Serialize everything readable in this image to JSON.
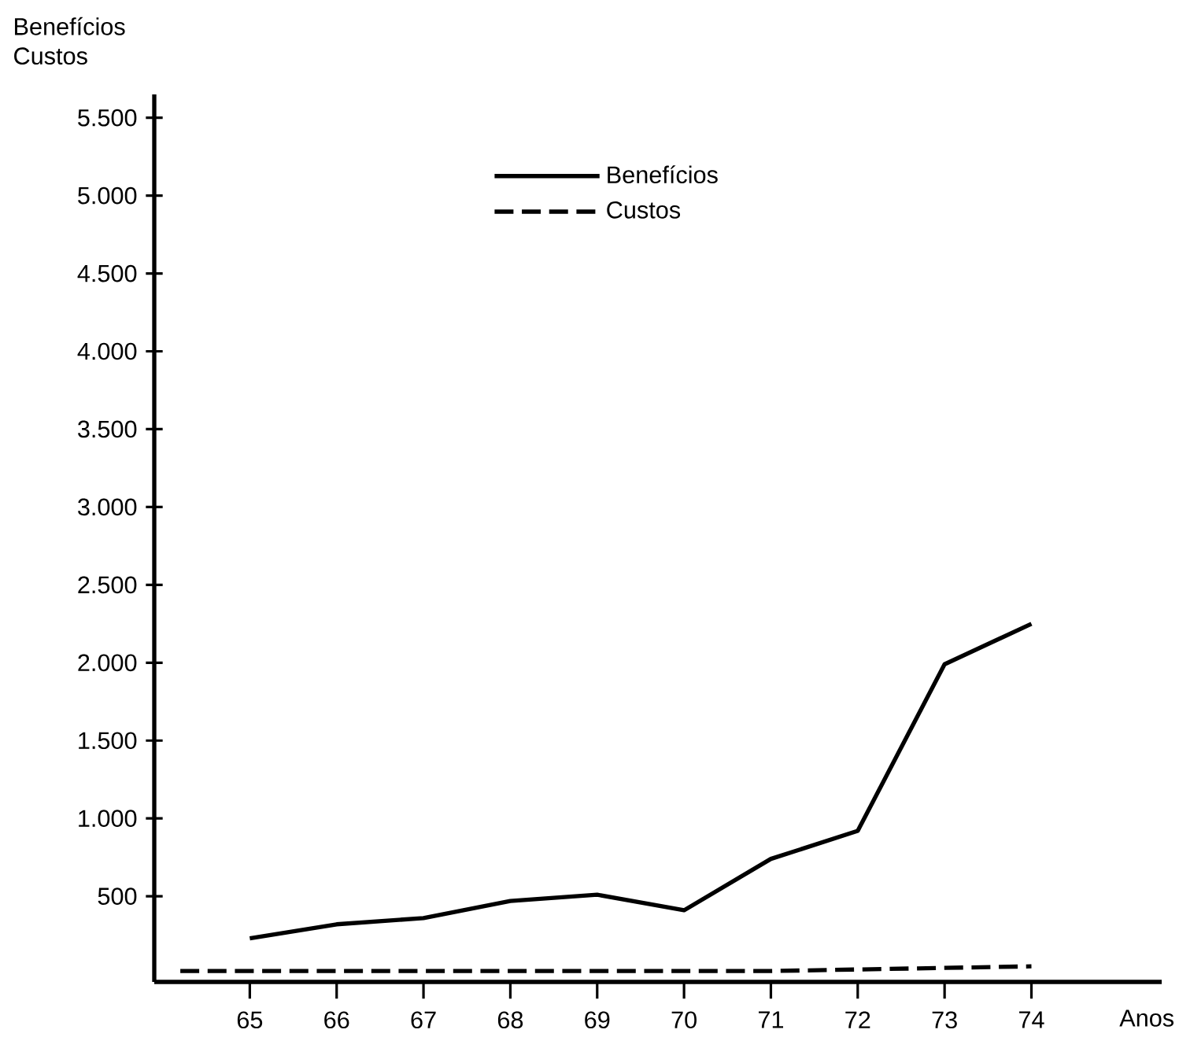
{
  "chart_data": {
    "type": "line",
    "ylabel": "Benefícios Custos",
    "xlabel": "Anos",
    "x": [
      65,
      66,
      67,
      68,
      69,
      70,
      71,
      72,
      73,
      74
    ],
    "series": [
      {
        "name": "Benefícios",
        "color": "#000000",
        "line_style": "solid",
        "values": [
          230,
          320,
          360,
          470,
          510,
          410,
          740,
          920,
          1990,
          2250
        ]
      },
      {
        "name": "Custos",
        "color": "#000000",
        "line_style": "dashed",
        "x": [
          64.2,
          65,
          66,
          67,
          68,
          69,
          70,
          71,
          72,
          73,
          74
        ],
        "values": [
          20,
          20,
          20,
          20,
          20,
          20,
          20,
          20,
          30,
          40,
          50
        ]
      }
    ],
    "xlim": [
      63.9,
      75.5
    ],
    "ylim": [
      -50,
      5650
    ],
    "xticks": [
      65,
      66,
      67,
      68,
      69,
      70,
      71,
      72,
      73,
      74
    ],
    "yticks": [
      {
        "value": 500,
        "label": "500"
      },
      {
        "value": 1000,
        "label": "1.000"
      },
      {
        "value": 1500,
        "label": "1.500"
      },
      {
        "value": 2000,
        "label": "2.000"
      },
      {
        "value": 2500,
        "label": "2.500"
      },
      {
        "value": 3000,
        "label": "3.000"
      },
      {
        "value": 3500,
        "label": "3.500"
      },
      {
        "value": 4000,
        "label": "4.000"
      },
      {
        "value": 4500,
        "label": "4.500"
      },
      {
        "value": 5000,
        "label": "5.000"
      },
      {
        "value": 5500,
        "label": "5.500"
      }
    ],
    "legend": "top",
    "grid": false,
    "marker": "none"
  }
}
